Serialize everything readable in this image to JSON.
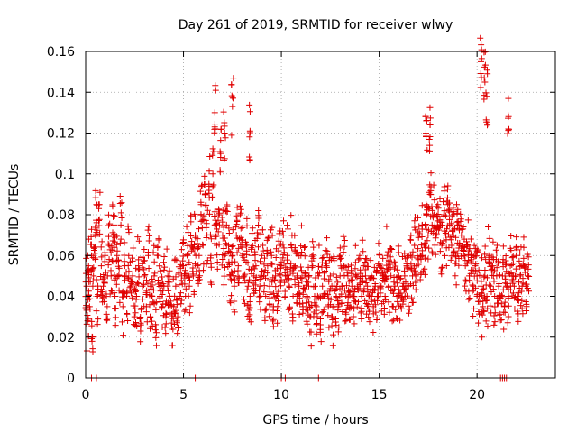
{
  "chart_data": {
    "type": "scatter",
    "title": "Day 261 of 2019, SRMTID for receiver wlwy",
    "xlabel": "GPS time / hours",
    "ylabel": "SRMTID / TECUs",
    "xlim": [
      0,
      24
    ],
    "ylim": [
      0,
      0.16
    ],
    "xticks": [
      0,
      5,
      10,
      15,
      20
    ],
    "xtick_labels": [
      "0",
      "5",
      "10",
      "15",
      "20"
    ],
    "yticks": [
      0,
      0.02,
      0.04,
      0.06,
      0.08,
      0.1,
      0.12,
      0.14,
      0.16
    ],
    "ytick_labels": [
      "0",
      "0.02",
      "0.04",
      "0.06",
      "0.08",
      "0.1",
      "0.12",
      "0.14",
      "0.16"
    ],
    "grid": true,
    "marker": "+",
    "color": "#e00000",
    "series": [
      {
        "name": "SRMTID",
        "description": "Dense cloud of ~2000 points; representative sample below",
        "x": [
          0.05,
          0.1,
          0.15,
          0.2,
          0.3,
          0.35,
          0.4,
          0.5,
          0.6,
          0.7,
          0.8,
          0.9,
          1.0,
          1.1,
          1.2,
          1.3,
          1.4,
          1.5,
          1.6,
          1.7,
          1.8,
          1.9,
          2.0,
          2.1,
          2.2,
          2.3,
          2.4,
          2.5,
          2.6,
          2.7,
          2.8,
          2.9,
          3.0,
          3.1,
          3.2,
          3.3,
          3.4,
          3.5,
          3.6,
          3.7,
          3.8,
          3.9,
          4.0,
          4.1,
          4.2,
          4.3,
          4.4,
          4.5,
          4.6,
          4.7,
          4.8,
          4.9,
          5.0,
          5.1,
          5.2,
          5.3,
          5.4,
          5.5,
          5.6,
          5.7,
          5.8,
          5.9,
          6.0,
          6.1,
          6.2,
          6.3,
          6.4,
          6.5,
          6.6,
          6.7,
          6.8,
          6.9,
          7.0,
          7.1,
          7.2,
          7.3,
          7.4,
          7.5,
          7.6,
          7.7,
          7.8,
          7.9,
          8.0,
          8.1,
          8.2,
          8.3,
          8.4,
          8.5,
          8.6,
          8.7,
          8.8,
          8.9,
          9.0,
          9.1,
          9.2,
          9.3,
          9.4,
          9.5,
          9.6,
          9.7,
          9.8,
          9.9,
          10.0,
          10.1,
          10.2,
          10.3,
          10.4,
          10.5,
          10.6,
          10.7,
          10.8,
          10.9,
          11.0,
          11.1,
          11.2,
          11.3,
          11.4,
          11.5,
          11.6,
          11.7,
          11.8,
          11.9,
          12.0,
          12.1,
          12.2,
          12.3,
          12.4,
          12.5,
          12.6,
          12.7,
          12.8,
          12.9,
          13.0,
          13.1,
          13.2,
          13.3,
          13.4,
          13.5,
          13.6,
          13.7,
          13.8,
          13.9,
          14.0,
          14.1,
          14.2,
          14.3,
          14.4,
          14.5,
          14.6,
          14.7,
          14.8,
          14.9,
          15.0,
          15.1,
          15.2,
          15.3,
          15.4,
          15.5,
          15.6,
          15.7,
          15.8,
          15.9,
          16.0,
          16.1,
          16.2,
          16.3,
          16.4,
          16.5,
          16.6,
          16.7,
          16.8,
          16.9,
          17.0,
          17.1,
          17.2,
          17.3,
          17.4,
          17.5,
          17.6,
          17.7,
          17.8,
          17.9,
          18.0,
          18.1,
          18.2,
          18.3,
          18.4,
          18.5,
          18.6,
          18.7,
          18.8,
          18.9,
          19.0,
          19.1,
          19.2,
          19.3,
          19.4,
          19.5,
          19.6,
          19.7,
          19.8,
          19.9,
          20.0,
          20.1,
          20.2,
          20.3,
          20.4,
          20.5,
          20.6,
          20.7,
          20.8,
          20.9,
          21.0,
          21.1,
          21.2,
          21.3,
          21.4,
          21.5,
          21.6,
          21.7,
          21.8,
          21.9,
          22.0,
          22.1,
          22.2,
          22.3,
          22.4,
          22.5,
          22.6,
          0.55,
          1.45,
          6.6,
          7.1,
          7.5,
          8.4,
          17.4,
          17.6,
          20.2,
          20.4,
          20.5,
          21.6,
          0.3,
          0.55,
          5.6,
          10.0,
          10.2,
          11.9,
          21.2,
          21.3,
          21.4,
          21.5
        ],
        "y": [
          0.045,
          0.028,
          0.055,
          0.035,
          0.06,
          0.02,
          0.05,
          0.07,
          0.04,
          0.085,
          0.055,
          0.045,
          0.06,
          0.035,
          0.065,
          0.05,
          0.07,
          0.04,
          0.06,
          0.05,
          0.075,
          0.035,
          0.055,
          0.04,
          0.06,
          0.045,
          0.05,
          0.03,
          0.04,
          0.055,
          0.025,
          0.045,
          0.05,
          0.035,
          0.06,
          0.03,
          0.04,
          0.05,
          0.025,
          0.06,
          0.04,
          0.035,
          0.045,
          0.03,
          0.05,
          0.04,
          0.025,
          0.035,
          0.045,
          0.03,
          0.04,
          0.05,
          0.055,
          0.04,
          0.06,
          0.045,
          0.065,
          0.05,
          0.07,
          0.055,
          0.06,
          0.085,
          0.065,
          0.09,
          0.07,
          0.095,
          0.06,
          0.1,
          0.075,
          0.065,
          0.08,
          0.11,
          0.07,
          0.06,
          0.075,
          0.065,
          0.05,
          0.06,
          0.045,
          0.07,
          0.055,
          0.08,
          0.06,
          0.05,
          0.065,
          0.045,
          0.04,
          0.06,
          0.05,
          0.055,
          0.07,
          0.045,
          0.06,
          0.05,
          0.04,
          0.055,
          0.045,
          0.06,
          0.035,
          0.05,
          0.04,
          0.065,
          0.055,
          0.07,
          0.05,
          0.06,
          0.045,
          0.065,
          0.04,
          0.055,
          0.05,
          0.045,
          0.06,
          0.035,
          0.05,
          0.04,
          0.045,
          0.03,
          0.055,
          0.04,
          0.035,
          0.05,
          0.025,
          0.045,
          0.04,
          0.055,
          0.035,
          0.05,
          0.03,
          0.045,
          0.04,
          0.035,
          0.05,
          0.045,
          0.055,
          0.04,
          0.05,
          0.035,
          0.045,
          0.04,
          0.05,
          0.045,
          0.06,
          0.04,
          0.055,
          0.05,
          0.045,
          0.04,
          0.05,
          0.035,
          0.045,
          0.04,
          0.055,
          0.045,
          0.05,
          0.04,
          0.06,
          0.045,
          0.05,
          0.035,
          0.045,
          0.04,
          0.05,
          0.035,
          0.045,
          0.05,
          0.055,
          0.045,
          0.06,
          0.05,
          0.065,
          0.055,
          0.07,
          0.06,
          0.075,
          0.065,
          0.085,
          0.07,
          0.09,
          0.075,
          0.08,
          0.07,
          0.085,
          0.075,
          0.065,
          0.08,
          0.07,
          0.085,
          0.075,
          0.065,
          0.07,
          0.06,
          0.075,
          0.065,
          0.07,
          0.06,
          0.055,
          0.065,
          0.05,
          0.06,
          0.045,
          0.055,
          0.05,
          0.04,
          0.045,
          0.035,
          0.05,
          0.04,
          0.06,
          0.045,
          0.055,
          0.04,
          0.05,
          0.045,
          0.04,
          0.05,
          0.035,
          0.045,
          0.04,
          0.055,
          0.05,
          0.045,
          0.06,
          0.04,
          0.05,
          0.045,
          0.055,
          0.045,
          0.05,
          0.085,
          0.075,
          0.13,
          0.12,
          0.133,
          0.121,
          0.126,
          0.124,
          0.155,
          0.145,
          0.138,
          0.122,
          0.0,
          0.0,
          0.0,
          0.0,
          0.0,
          0.0,
          0.0,
          0.0,
          0.0,
          0.0
        ]
      }
    ]
  }
}
